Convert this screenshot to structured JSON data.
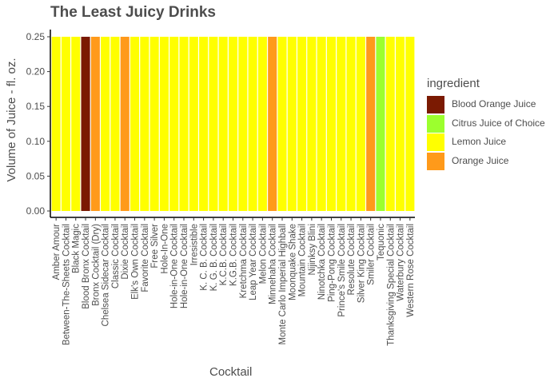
{
  "chart_data": {
    "type": "bar",
    "stacked": false,
    "title": "The Least Juicy Drinks",
    "xlabel": "Cocktail",
    "ylabel": "Volume of Juice - fl. oz.",
    "ylim": [
      0,
      0.25
    ],
    "yticks": [
      "0.00",
      "0.05",
      "0.10",
      "0.15",
      "0.20",
      "0.25"
    ],
    "grid": false,
    "legend_title": "ingredient",
    "legend_position": "right",
    "legend": [
      {
        "name": "Blood Orange Juice",
        "color": "#7b1a02"
      },
      {
        "name": "Citrus Juice of Choice",
        "color": "#9cff2e"
      },
      {
        "name": "Lemon Juice",
        "color": "#ffff00"
      },
      {
        "name": "Orange Juice",
        "color": "#ff9a1a"
      }
    ],
    "categories": [
      "Amber Amour",
      "Between-The-Sheets Cocktail",
      "Black Magic",
      "Blood Bronx Cocktail",
      "Bronx Cocktail (Dry)",
      "Chelsea Sidecar Cocktail",
      "Classic Cocktail",
      "Dixie Cocktail",
      "Elk's Own Cocktail",
      "Favorite Cocktail",
      "Free Silver",
      "Hole-In-One",
      "Hole-in-One Cocktail",
      "Hole-in-One Cocktail",
      "Irresistible",
      "K. C. B. Cocktail",
      "K. G. B. Cocktail",
      "K.C.B. Cocktail",
      "K.G.B. Cocktail",
      "Kretchma Cocktail",
      "Leap Year Cocktail",
      "Melon Cocktail",
      "Minnehaha Cocktail",
      "Monte Carlo Imperial Highball",
      "Moonquake Shake",
      "Mountain Cocktail",
      "Nijinksy Blini",
      "Ninotchka Cocktail",
      "Ping-Pong Cocktail",
      "Prince's Smile Cocktail",
      "Resolute Cocktail",
      "Silver King Cocktail",
      "Smiler Cocktail",
      "Tequonic",
      "Thanksgiving Special Cocktail",
      "Waterbury Cocktail",
      "Western Rose Cocktail"
    ],
    "values": [
      0.25,
      0.25,
      0.25,
      0.25,
      0.25,
      0.25,
      0.25,
      0.25,
      0.25,
      0.25,
      0.25,
      0.25,
      0.25,
      0.25,
      0.25,
      0.25,
      0.25,
      0.25,
      0.25,
      0.25,
      0.25,
      0.25,
      0.25,
      0.25,
      0.25,
      0.25,
      0.25,
      0.25,
      0.25,
      0.25,
      0.25,
      0.25,
      0.25,
      0.25,
      0.25,
      0.25,
      0.25
    ],
    "ingredients": [
      "Lemon Juice",
      "Lemon Juice",
      "Lemon Juice",
      "Blood Orange Juice",
      "Orange Juice",
      "Lemon Juice",
      "Lemon Juice",
      "Orange Juice",
      "Lemon Juice",
      "Lemon Juice",
      "Lemon Juice",
      "Lemon Juice",
      "Lemon Juice",
      "Lemon Juice",
      "Lemon Juice",
      "Lemon Juice",
      "Lemon Juice",
      "Lemon Juice",
      "Lemon Juice",
      "Lemon Juice",
      "Lemon Juice",
      "Lemon Juice",
      "Orange Juice",
      "Lemon Juice",
      "Lemon Juice",
      "Lemon Juice",
      "Lemon Juice",
      "Lemon Juice",
      "Lemon Juice",
      "Lemon Juice",
      "Lemon Juice",
      "Lemon Juice",
      "Orange Juice",
      "Citrus Juice of Choice",
      "Lemon Juice",
      "Lemon Juice",
      "Lemon Juice"
    ]
  }
}
